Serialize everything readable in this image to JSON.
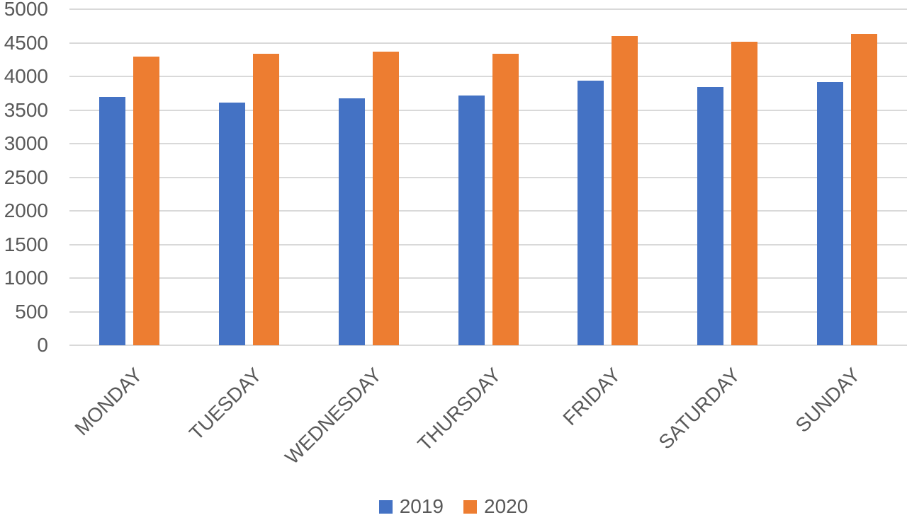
{
  "chart_data": {
    "type": "bar",
    "title": "",
    "xlabel": "",
    "ylabel": "",
    "categories": [
      "MONDAY",
      "TUESDAY",
      "WEDNESDAY",
      "THURSDAY",
      "FRIDAY",
      "SATURDAY",
      "SUNDAY"
    ],
    "series": [
      {
        "name": "2019",
        "color": "#4472C4",
        "values": [
          3700,
          3610,
          3670,
          3720,
          3940,
          3840,
          3920
        ]
      },
      {
        "name": "2020",
        "color": "#ED7D31",
        "values": [
          4300,
          4340,
          4370,
          4340,
          4600,
          4520,
          4630
        ]
      }
    ],
    "ylim": [
      0,
      5000
    ],
    "ytick_step": 500,
    "grid": true,
    "legend_position": "bottom"
  },
  "colors": {
    "axis_text": "#595959",
    "gridline": "#D9D9D9",
    "background": "#FFFFFF"
  }
}
